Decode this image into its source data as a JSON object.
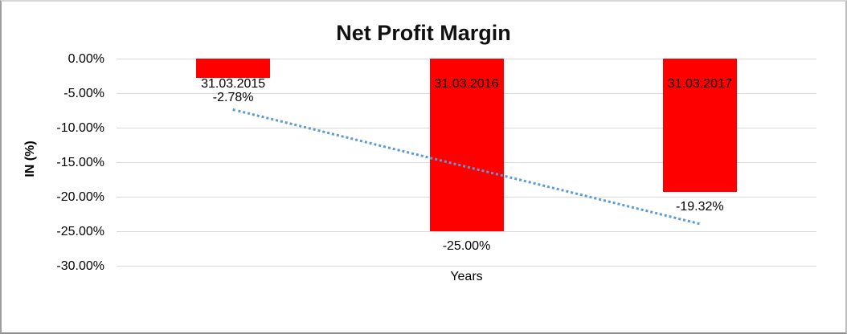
{
  "chart_data": {
    "type": "bar",
    "title": "Net Profit Margin",
    "xlabel": "Years",
    "ylabel": "IN (%)",
    "categories": [
      "31.03.2015",
      "31.03.2016",
      "31.03.2017"
    ],
    "values": [
      -2.78,
      -25.0,
      -19.32
    ],
    "value_labels": [
      "-2.78%",
      "-25.00%",
      "-19.32%"
    ],
    "yticks": [
      0,
      -5,
      -10,
      -15,
      -20,
      -25,
      -30
    ],
    "ytick_labels": [
      "0.00%",
      "-5.00%",
      "-10.00%",
      "-15.00%",
      "-20.00%",
      "-25.00%",
      "-30.00%"
    ],
    "ylim": [
      0,
      -30
    ],
    "grid": true,
    "legend": "none",
    "colors": {
      "bar": "#ff0000",
      "trendline": "#5b9bd5",
      "gridline": "#d9d9d9",
      "text": "#000000"
    },
    "trendline": {
      "type": "linear",
      "style": "dotted",
      "start_pct": -7.43,
      "end_pct": -23.97
    }
  }
}
